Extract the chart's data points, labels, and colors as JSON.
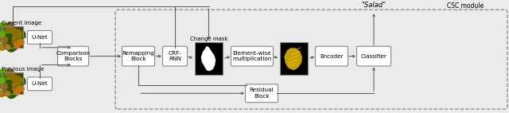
{
  "fig_width": 6.4,
  "fig_height": 1.42,
  "dpi": 100,
  "bg_color": "#ebebeb",
  "labels": {
    "current_image": "Current image",
    "previous_image": "Previous image",
    "unet_top": "U-Net",
    "unet_bot": "U-Net",
    "comparison": "Comparison\nBlocks",
    "remapping": "Remapping\nBlock",
    "crf": "CRF-\nRNN",
    "change_mask": "Change mask",
    "elemwise": "Element-wise\nmultiplication",
    "encoder": "Encoder",
    "classifier": "Classifier",
    "residual": "Residual\nBlock",
    "csc": "CSC module",
    "salad": "\"Salad\""
  }
}
